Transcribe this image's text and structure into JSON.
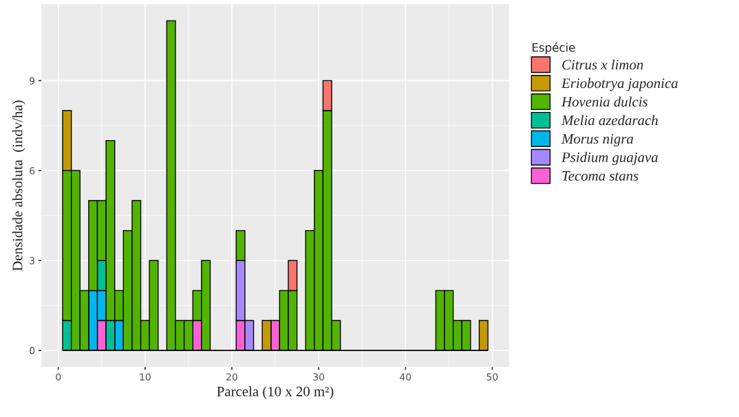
{
  "chart_data": {
    "type": "bar",
    "stacked": true,
    "xlabel": "Parcela (10 x 20 m²)",
    "ylabel": "Densidade absoluta  (indv/ha)",
    "legend_title": "Espécie",
    "x": [
      1,
      2,
      3,
      4,
      5,
      6,
      7,
      8,
      9,
      10,
      11,
      12,
      13,
      14,
      15,
      16,
      17,
      18,
      19,
      20,
      21,
      22,
      23,
      24,
      25,
      26,
      27,
      28,
      29,
      30,
      31,
      32,
      33,
      34,
      35,
      36,
      37,
      38,
      39,
      40,
      41,
      42,
      43,
      44,
      45,
      46,
      47,
      48,
      49
    ],
    "series": [
      {
        "name": "Tecoma stans",
        "color": "#fb61d7",
        "values": [
          null,
          null,
          null,
          null,
          1,
          null,
          null,
          null,
          null,
          null,
          null,
          null,
          null,
          null,
          null,
          1,
          null,
          null,
          null,
          null,
          1,
          null,
          null,
          null,
          1,
          null,
          null,
          null,
          null,
          null,
          null,
          null,
          null,
          null,
          null,
          null,
          null,
          null,
          null,
          null,
          null,
          null,
          null,
          null,
          null,
          null,
          null,
          null,
          null
        ]
      },
      {
        "name": "Psidium guajava",
        "color": "#a58aff",
        "values": [
          null,
          null,
          null,
          null,
          null,
          null,
          null,
          null,
          null,
          null,
          null,
          null,
          null,
          null,
          null,
          null,
          null,
          null,
          null,
          null,
          2,
          1,
          null,
          null,
          null,
          null,
          null,
          null,
          null,
          null,
          null,
          null,
          null,
          null,
          null,
          null,
          null,
          null,
          null,
          null,
          null,
          null,
          null,
          null,
          null,
          null,
          null,
          null,
          null
        ]
      },
      {
        "name": "Morus nigra",
        "color": "#00b6eb",
        "values": [
          null,
          null,
          null,
          2,
          1,
          null,
          1,
          null,
          null,
          null,
          null,
          null,
          null,
          null,
          null,
          null,
          null,
          null,
          null,
          null,
          null,
          null,
          null,
          null,
          null,
          null,
          null,
          null,
          null,
          null,
          null,
          null,
          null,
          null,
          null,
          null,
          null,
          null,
          null,
          null,
          null,
          null,
          null,
          null,
          null,
          null,
          null,
          null,
          null
        ]
      },
      {
        "name": "Melia azedarach",
        "color": "#00c094",
        "values": [
          1,
          null,
          null,
          null,
          1,
          1,
          null,
          null,
          null,
          null,
          null,
          null,
          null,
          null,
          null,
          null,
          null,
          null,
          null,
          null,
          null,
          null,
          null,
          null,
          null,
          null,
          null,
          null,
          null,
          null,
          null,
          null,
          null,
          null,
          null,
          null,
          null,
          null,
          null,
          null,
          null,
          null,
          null,
          null,
          null,
          null,
          null,
          null,
          null
        ]
      },
      {
        "name": "Hovenia dulcis",
        "color": "#53b400",
        "values": [
          5,
          6,
          2,
          3,
          2,
          6,
          1,
          4,
          5,
          1,
          3,
          null,
          11,
          1,
          1,
          1,
          3,
          null,
          null,
          null,
          1,
          null,
          null,
          null,
          null,
          2,
          2,
          null,
          4,
          6,
          8,
          1,
          null,
          null,
          null,
          null,
          null,
          null,
          null,
          null,
          null,
          null,
          null,
          2,
          2,
          1,
          1,
          null,
          null
        ]
      },
      {
        "name": "Eriobotrya japonica",
        "color": "#c49a00",
        "values": [
          2,
          null,
          null,
          null,
          null,
          null,
          null,
          null,
          null,
          null,
          null,
          null,
          null,
          null,
          null,
          null,
          null,
          null,
          null,
          null,
          null,
          null,
          null,
          1,
          null,
          null,
          null,
          null,
          null,
          null,
          null,
          null,
          null,
          null,
          null,
          null,
          null,
          null,
          null,
          null,
          null,
          null,
          null,
          null,
          null,
          null,
          null,
          null,
          1
        ]
      },
      {
        "name": "Citrus x limon",
        "color": "#f8766d",
        "values": [
          null,
          null,
          null,
          null,
          null,
          null,
          null,
          null,
          null,
          null,
          null,
          null,
          null,
          null,
          null,
          null,
          null,
          null,
          null,
          null,
          null,
          null,
          null,
          null,
          null,
          null,
          1,
          null,
          null,
          null,
          1,
          null,
          null,
          null,
          null,
          null,
          null,
          null,
          null,
          null,
          null,
          null,
          null,
          null,
          null,
          null,
          null,
          null,
          null
        ]
      }
    ],
    "ref_lines": [
      {
        "axis": "y",
        "value": 0,
        "color": "#000000"
      }
    ],
    "xlim": [
      -1.95,
      51.95
    ],
    "xticks": [
      0,
      10,
      20,
      30,
      40,
      50
    ],
    "ylim": [
      -0.55,
      11.55
    ],
    "yticks": [
      0,
      3,
      6,
      9
    ],
    "grid": true,
    "legend": "right"
  }
}
